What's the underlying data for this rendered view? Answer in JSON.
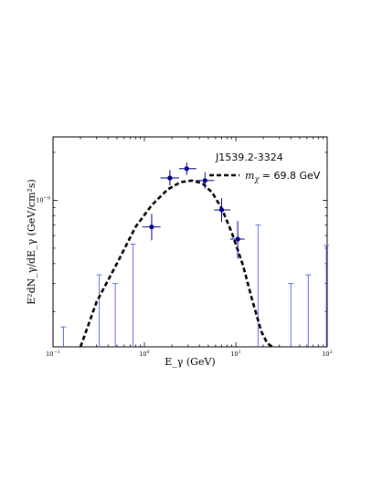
{
  "chart_data": {
    "type": "scatter",
    "title": "",
    "xlabel": "E_γ (GeV)",
    "ylabel": "E²dN_γ/dE_γ (GeV/cm²s)",
    "x_scale": "log",
    "y_scale": "log",
    "xlim": [
      0.1,
      100
    ],
    "ylim": [
      1.2e-10,
      2.5e-09
    ],
    "x_major_ticks": [
      {
        "value": 0.1,
        "base": "10",
        "exp": "−1"
      },
      {
        "value": 1,
        "base": "10",
        "exp": "0"
      },
      {
        "value": 10,
        "base": "10",
        "exp": "1"
      },
      {
        "value": 100,
        "base": "10",
        "exp": "2"
      }
    ],
    "y_major_ticks": [
      {
        "value": 1e-09,
        "base": "10",
        "exp": "−9"
      }
    ],
    "grid": false,
    "legend": {
      "position": "top-right",
      "source_name": "J1539.2-3324",
      "entries": [
        {
          "label_prefix": "m",
          "label_sub": "χ",
          "label_suffix": " = 69.8 GeV",
          "style": "dashed",
          "color": "#000000"
        }
      ]
    },
    "series": [
      {
        "kind": "points",
        "color": "#00008b",
        "points": [
          {
            "x": 1.2,
            "y": 6.8e-10,
            "xerr": [
              0.95,
              1.5
            ],
            "yerr": [
              5.6e-10,
              8.2e-10
            ]
          },
          {
            "x": 1.9,
            "y": 1.38e-09,
            "xerr": [
              1.5,
              2.4
            ],
            "yerr": [
              1.24e-09,
              1.55e-09
            ]
          },
          {
            "x": 2.9,
            "y": 1.58e-09,
            "xerr": [
              2.4,
              3.7
            ],
            "yerr": [
              1.44e-09,
              1.73e-09
            ]
          },
          {
            "x": 4.6,
            "y": 1.33e-09,
            "xerr": [
              3.7,
              5.8
            ],
            "yerr": [
              1.18e-09,
              1.5e-09
            ]
          },
          {
            "x": 7.0,
            "y": 8.7e-10,
            "xerr": [
              5.8,
              8.7
            ],
            "yerr": [
              7.3e-10,
              1.03e-09
            ]
          },
          {
            "x": 10.5,
            "y": 5.7e-10,
            "xerr": [
              8.7,
              12.5
            ],
            "yerr": [
              4.3e-10,
              7.4e-10
            ]
          }
        ]
      },
      {
        "kind": "upper_limits",
        "color": "#4f5fe0",
        "points": [
          {
            "x": 0.13,
            "y": 1.6e-10
          },
          {
            "x": 0.32,
            "y": 3.4e-10
          },
          {
            "x": 0.48,
            "y": 3e-10
          },
          {
            "x": 0.75,
            "y": 5.3e-10
          },
          {
            "x": 17.5,
            "y": 7e-10
          },
          {
            "x": 40,
            "y": 3e-10
          },
          {
            "x": 62,
            "y": 3.4e-10
          },
          {
            "x": 98,
            "y": 5.2e-10
          }
        ]
      },
      {
        "kind": "model",
        "name": "m_χ = 69.8 GeV",
        "style": "dashed",
        "color": "#000000",
        "x": [
          0.2,
          0.3,
          0.5,
          0.8,
          1.2,
          1.8,
          2.5,
          3.3,
          4.3,
          5.5,
          7.0,
          9.0,
          12.0,
          15.0,
          19.0,
          22.0,
          25.0
        ],
        "y": [
          1.2e-10,
          2.3e-10,
          4e-10,
          6.8e-10,
          9.3e-10,
          1.17e-09,
          1.3e-09,
          1.33e-09,
          1.28e-09,
          1.12e-09,
          8.9e-10,
          6.3e-10,
          3.9e-10,
          2.4e-10,
          1.5e-10,
          1.27e-10,
          1.2e-10
        ]
      }
    ]
  }
}
